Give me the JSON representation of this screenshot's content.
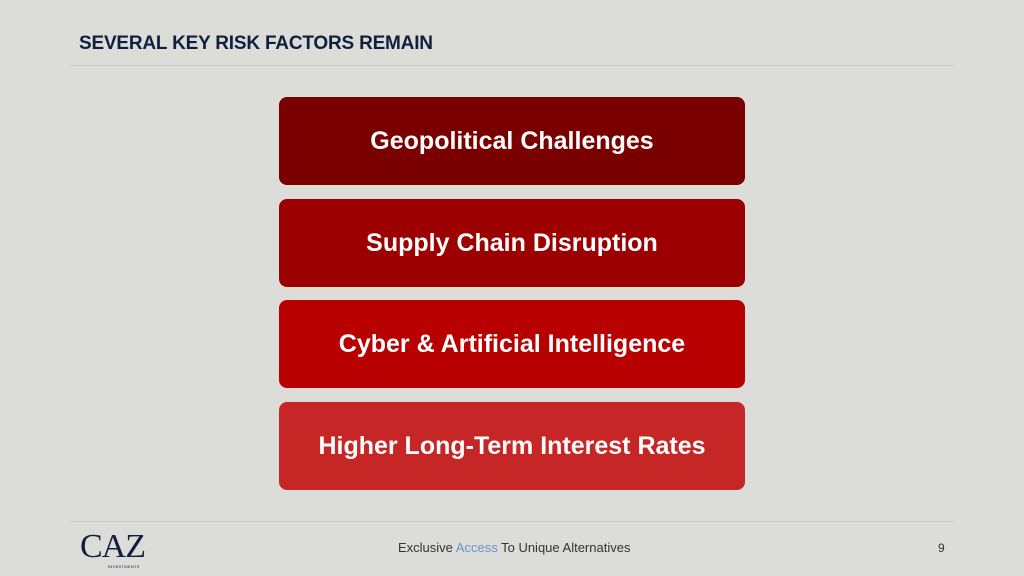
{
  "title": "SEVERAL KEY RISK FACTORS REMAIN",
  "risks": [
    {
      "label": "Geopolitical Challenges",
      "color": "#7a0000"
    },
    {
      "label": "Supply Chain Disruption",
      "color": "#9c0000"
    },
    {
      "label": "Cyber & Artificial Intelligence",
      "color": "#b90000"
    },
    {
      "label": "Higher Long-Term Interest Rates",
      "color": "#c62626"
    }
  ],
  "footer": {
    "logo_text": "CAZ",
    "logo_subtext": "INVESTMENTS",
    "tagline_pre": "Exclusive ",
    "tagline_accent": "Access",
    "tagline_post": " To Unique Alternatives",
    "page_number": "9"
  }
}
